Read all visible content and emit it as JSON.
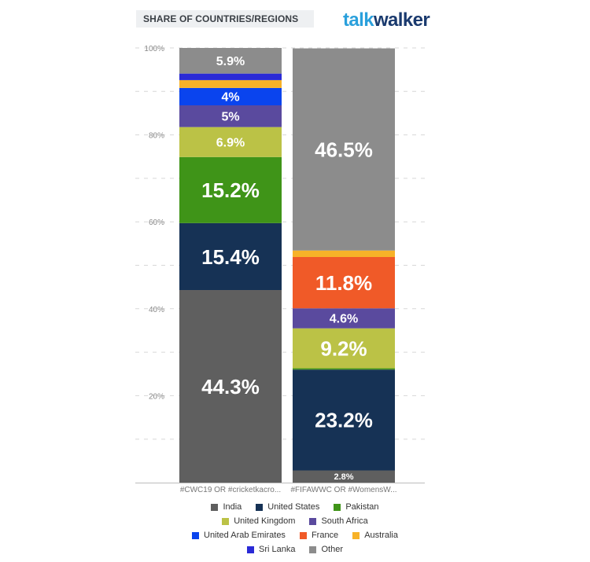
{
  "header": {
    "title": "SHARE OF COUNTRIES/REGIONS",
    "brand_part1": "talk",
    "brand_part2": "walker",
    "brand_colors": [
      "#2aa0dc",
      "#1a3a6e"
    ]
  },
  "chart_data": {
    "type": "bar",
    "stacked": true,
    "normalized_percent": true,
    "categories": [
      "#CWC19 OR #cricketkacro...",
      "#FIFAWWC OR #WomensW..."
    ],
    "y_ticks": [
      "20%",
      "40%",
      "60%",
      "80%",
      "100%"
    ],
    "ylim": [
      0,
      100
    ],
    "grid": true,
    "legend_position": "bottom",
    "series": [
      {
        "name": "India",
        "color": "#5f5f5f",
        "values": [
          44.3,
          2.8
        ],
        "labels": [
          "44.3%",
          "2.8%"
        ]
      },
      {
        "name": "United States",
        "color": "#163255",
        "values": [
          15.4,
          23.2
        ],
        "labels": [
          "15.4%",
          "23.2%"
        ]
      },
      {
        "name": "Pakistan",
        "color": "#3f9418",
        "values": [
          15.2,
          0.3
        ],
        "labels": [
          "15.2%",
          ""
        ]
      },
      {
        "name": "United Kingdom",
        "color": "#bbc246",
        "values": [
          6.9,
          9.2
        ],
        "labels": [
          "6.9%",
          "9.2%"
        ]
      },
      {
        "name": "South Africa",
        "color": "#5a4a9e",
        "values": [
          5.0,
          4.6
        ],
        "labels": [
          "5%",
          "4.6%"
        ]
      },
      {
        "name": "United Arab Emirates",
        "color": "#0a44ee",
        "values": [
          4.0,
          0
        ],
        "labels": [
          "4%",
          ""
        ]
      },
      {
        "name": "France",
        "color": "#f05a28",
        "values": [
          0,
          11.8
        ],
        "labels": [
          "",
          "11.8%"
        ]
      },
      {
        "name": "Australia",
        "color": "#f7b228",
        "values": [
          1.8,
          1.5
        ],
        "labels": [
          "",
          ""
        ]
      },
      {
        "name": "Sri Lanka",
        "color": "#2a2ad6",
        "values": [
          1.5,
          0
        ],
        "labels": [
          "",
          ""
        ]
      },
      {
        "name": "Other",
        "color": "#8c8c8c",
        "values": [
          5.9,
          46.5
        ],
        "labels": [
          "5.9%",
          "46.5%"
        ]
      }
    ],
    "legend_rows": [
      [
        "India",
        "United States",
        "Pakistan"
      ],
      [
        "United Kingdom",
        "South Africa"
      ],
      [
        "United Arab Emirates",
        "France",
        "Australia"
      ],
      [
        "Sri Lanka",
        "Other"
      ]
    ]
  }
}
